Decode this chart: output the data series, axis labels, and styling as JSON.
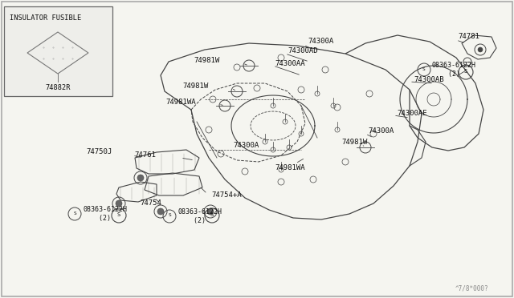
{
  "bg_color": "#f5f5f0",
  "line_color": "#444444",
  "text_color": "#111111",
  "footer": "^7/8*000?",
  "inset_label": "INSULATOR FUSIBLE",
  "inset_part": "74882R",
  "figsize": [
    6.4,
    3.72
  ],
  "dpi": 100
}
